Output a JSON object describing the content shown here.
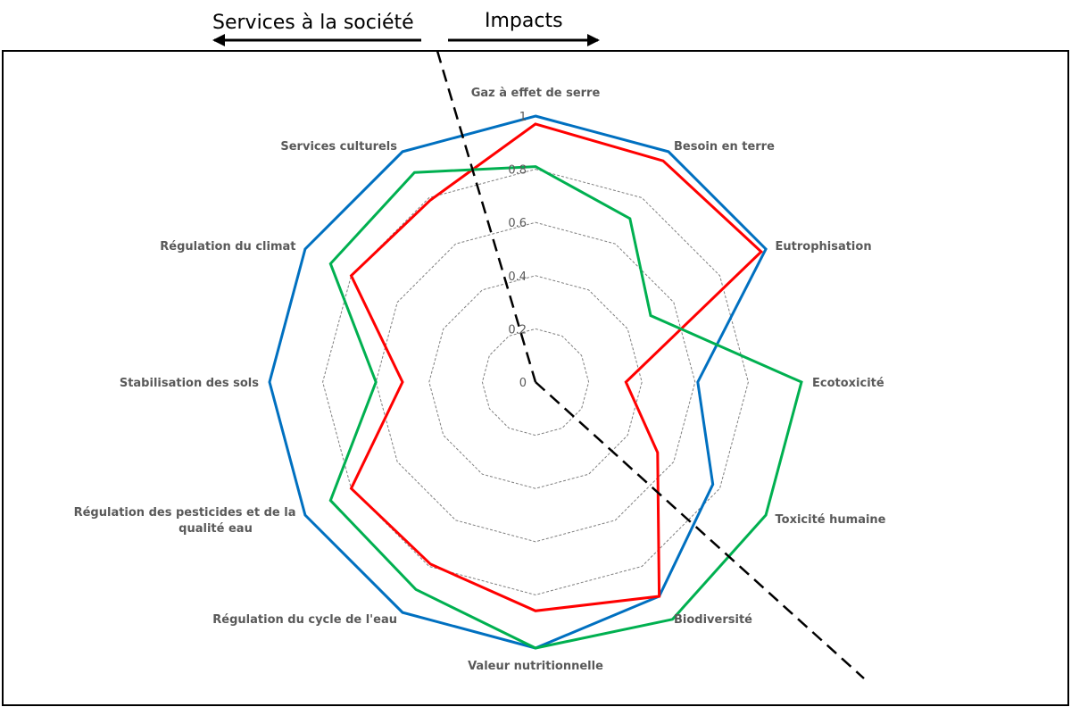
{
  "header": {
    "left_label": "Services à la société",
    "right_label": "Impacts"
  },
  "chart_data": {
    "type": "radar",
    "axes": [
      "Gaz à effet de serre",
      "Besoin en terre",
      "Eutrophisation",
      "Ecotoxicité",
      "Toxicité humaine",
      "Biodiversité",
      "Valeur nutritionnelle",
      "Régulation du cycle de l'eau",
      "Régulation des pesticides et de la qualité eau",
      "Stabilisation des sols",
      "Régulation du climat",
      "Services culturels"
    ],
    "rlim": [
      0,
      1
    ],
    "ticks": [
      "0",
      "0.2",
      "0.4",
      "0.6",
      "0.8",
      "1"
    ],
    "grid": true,
    "series": [
      {
        "color": "#0070C0",
        "values": [
          1.0,
          1.0,
          1.0,
          0.61,
          0.77,
          0.93,
          1.0,
          1.0,
          1.0,
          1.0,
          1.0,
          1.0
        ]
      },
      {
        "color": "#FF0000",
        "values": [
          0.97,
          0.96,
          0.98,
          0.34,
          0.53,
          0.93,
          0.86,
          0.79,
          0.8,
          0.5,
          0.8,
          0.79
        ]
      },
      {
        "color": "#00B050",
        "values": [
          0.81,
          0.71,
          0.5,
          1.0,
          1.0,
          1.03,
          1.0,
          0.9,
          0.89,
          0.6,
          0.89,
          0.91
        ]
      }
    ]
  }
}
